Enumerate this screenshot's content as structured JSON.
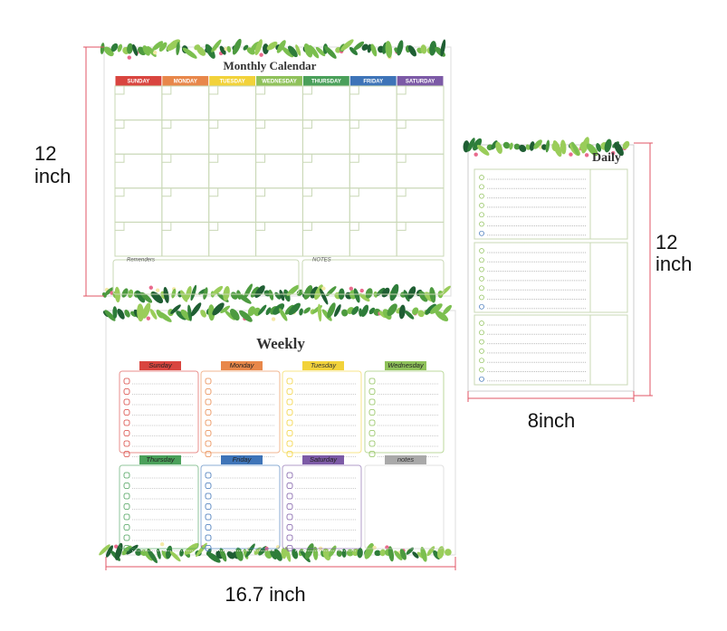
{
  "monthly": {
    "title": "Monthly Calendar",
    "days": [
      "SUNDAY",
      "MONDAY",
      "TUESDAY",
      "WEDNESDAY",
      "THURSDAY",
      "FRIDAY",
      "SATURDAY"
    ],
    "day_colors": [
      "#d9453f",
      "#e8874a",
      "#f2d23a",
      "#8fc15a",
      "#4aa05a",
      "#3e74b8",
      "#7c5aa6"
    ],
    "reminders_label": "Remenders",
    "notes_label": "NOTES"
  },
  "weekly": {
    "title": "Weekly",
    "days": [
      "Sunday",
      "Monday",
      "Tuesday",
      "Wednesday",
      "Thursday",
      "Friday",
      "Saturday"
    ],
    "day_colors": [
      "#d9453f",
      "#e8874a",
      "#f2d23a",
      "#8fc15a",
      "#4aa05a",
      "#3e74b8",
      "#7c5aa6"
    ],
    "notes_label": "notes",
    "notes_color": "#a9a9a9"
  },
  "daily": {
    "title": "Daily"
  },
  "dimensions": {
    "monthly_height": [
      "12",
      "inch"
    ],
    "daily_height": [
      "12",
      "inch"
    ],
    "daily_width": "8inch",
    "weekly_width": "16.7 inch"
  }
}
